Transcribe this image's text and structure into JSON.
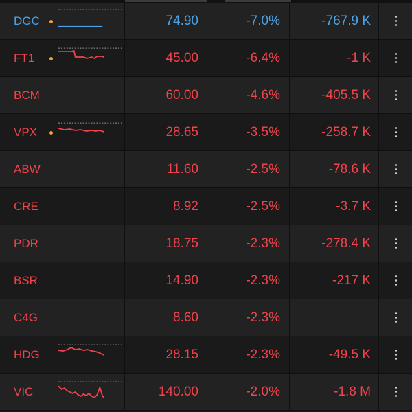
{
  "colors": {
    "negative": "#f0434b",
    "ceiling": "#4aa3e8",
    "alert_dot": "#f2a33a",
    "background": "#1a1a1a",
    "row_alt": "#222222"
  },
  "rows": [
    {
      "symbol": "DGC",
      "price": "74.90",
      "change": "-7.0%",
      "volume": "-767.9 K",
      "color": "ceiling",
      "alert": true,
      "spark": "flat"
    },
    {
      "symbol": "FT1",
      "price": "45.00",
      "change": "-6.4%",
      "volume": "-1 K",
      "color": "negative",
      "alert": true,
      "spark": "drop"
    },
    {
      "symbol": "BCM",
      "price": "60.00",
      "change": "-4.6%",
      "volume": "-405.5 K",
      "color": "negative",
      "alert": false,
      "spark": "none"
    },
    {
      "symbol": "VPX",
      "price": "28.65",
      "change": "-3.5%",
      "volume": "-258.7 K",
      "color": "negative",
      "alert": true,
      "spark": "wavy"
    },
    {
      "symbol": "ABW",
      "price": "11.60",
      "change": "-2.5%",
      "volume": "-78.6 K",
      "color": "negative",
      "alert": false,
      "spark": "none"
    },
    {
      "symbol": "CRE",
      "price": "8.92",
      "change": "-2.5%",
      "volume": "-3.7 K",
      "color": "negative",
      "alert": false,
      "spark": "none"
    },
    {
      "symbol": "PDR",
      "price": "18.75",
      "change": "-2.3%",
      "volume": "-278.4 K",
      "color": "negative",
      "alert": false,
      "spark": "none"
    },
    {
      "symbol": "BSR",
      "price": "14.90",
      "change": "-2.3%",
      "volume": "-217 K",
      "color": "negative",
      "alert": false,
      "spark": "none"
    },
    {
      "symbol": "C4G",
      "price": "8.60",
      "change": "-2.3%",
      "volume": "",
      "color": "negative",
      "alert": false,
      "spark": "none"
    },
    {
      "symbol": "HDG",
      "price": "28.15",
      "change": "-2.3%",
      "volume": "-49.5 K",
      "color": "negative",
      "alert": false,
      "spark": "decline"
    },
    {
      "symbol": "VIC",
      "price": "140.00",
      "change": "-2.0%",
      "volume": "-1.8 M",
      "color": "negative",
      "alert": false,
      "spark": "volatile"
    }
  ],
  "icons": {
    "row_menu": "kebab-menu-icon",
    "alert": "alert-dot-icon"
  }
}
